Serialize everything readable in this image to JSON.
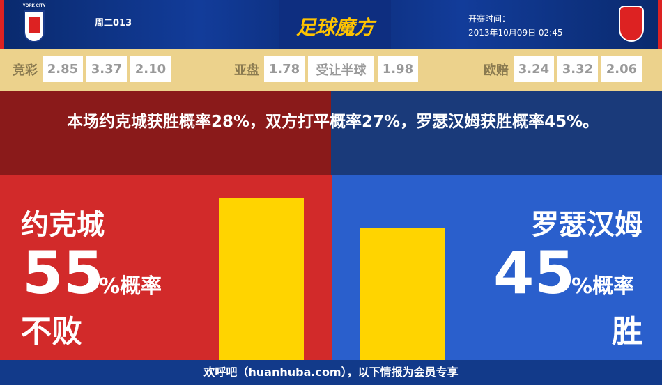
{
  "header": {
    "home_logo_text": "YORK CITY",
    "match_no": "周二013",
    "brand": "足球魔方",
    "time_label": "开赛时间：",
    "time": "2013年10月09日 02:45"
  },
  "odds": {
    "jingcai": {
      "label": "竞彩",
      "values": [
        "2.85",
        "3.37",
        "2.10"
      ]
    },
    "yapan": {
      "label": "亚盘",
      "values": [
        "1.78",
        "受让半球",
        "1.98"
      ]
    },
    "oupei": {
      "label": "欧赔",
      "values": [
        "3.24",
        "3.32",
        "2.06"
      ]
    }
  },
  "summary": "本场约克城获胜概率28%，双方打平概率27%，罗瑟汉姆获胜概率45%。",
  "home": {
    "name": "约克城",
    "percent": "55",
    "percent_suffix": "%概率",
    "result": "不败",
    "bar_value": 55
  },
  "away": {
    "name": "罗瑟汉姆",
    "percent": "45",
    "percent_suffix": "%概率",
    "result": "胜",
    "bar_value": 45
  },
  "colors": {
    "home": "#d22a2a",
    "away": "#2a5fcc",
    "bar": "#ffd400"
  },
  "footer": "欢呼吧（huanhuba.com），以下情报为会员专享"
}
